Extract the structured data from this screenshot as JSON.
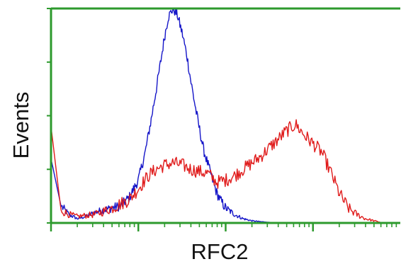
{
  "chart_data": {
    "type": "line",
    "title": "",
    "xlabel": "RFC2",
    "ylabel": "Events",
    "x_scale": "log",
    "xlim": [
      1,
      10000
    ],
    "ylim": [
      0,
      100
    ],
    "grid": false,
    "legend": "none",
    "colors": {
      "axis": "#2d9a2d",
      "blue_series": "#1515c8",
      "red_series": "#e01b1b"
    },
    "series": [
      {
        "color": "#1515c8",
        "x": [
          1.0,
          1.3,
          1.6,
          2.0,
          2.5,
          3.2,
          4.0,
          5.0,
          6.3,
          7.9,
          10,
          12,
          14,
          16,
          18,
          20,
          22,
          25,
          28,
          32,
          36,
          40,
          45,
          50,
          56,
          63,
          71,
          79,
          89,
          100,
          126,
          158,
          200,
          251,
          316,
          400,
          500
        ],
        "y": [
          30,
          8,
          4,
          2,
          3,
          5,
          6,
          7,
          8,
          12,
          20,
          33,
          48,
          62,
          75,
          87,
          96,
          100,
          97,
          88,
          78,
          66,
          54,
          44,
          34,
          27,
          20,
          14,
          10,
          7,
          4,
          2,
          1,
          0.6,
          0.3,
          0.1,
          0
        ]
      },
      {
        "color": "#e01b1b",
        "x": [
          1.0,
          1.3,
          1.6,
          2.0,
          3.2,
          5.0,
          7.9,
          10,
          13,
          16,
          20,
          25,
          32,
          40,
          50,
          63,
          79,
          100,
          126,
          158,
          200,
          251,
          316,
          400,
          500,
          631,
          794,
          1000,
          1259,
          1585,
          1995,
          2512,
          3162,
          3981,
          5012,
          6310
        ],
        "y": [
          45,
          6,
          4,
          3,
          4,
          7,
          11,
          16,
          22,
          25,
          27,
          28,
          27,
          25,
          24,
          23,
          19,
          20,
          22,
          25,
          28,
          31,
          35,
          39,
          43,
          46,
          41,
          37,
          33,
          24,
          14,
          7,
          4,
          2,
          1,
          0
        ]
      }
    ]
  }
}
